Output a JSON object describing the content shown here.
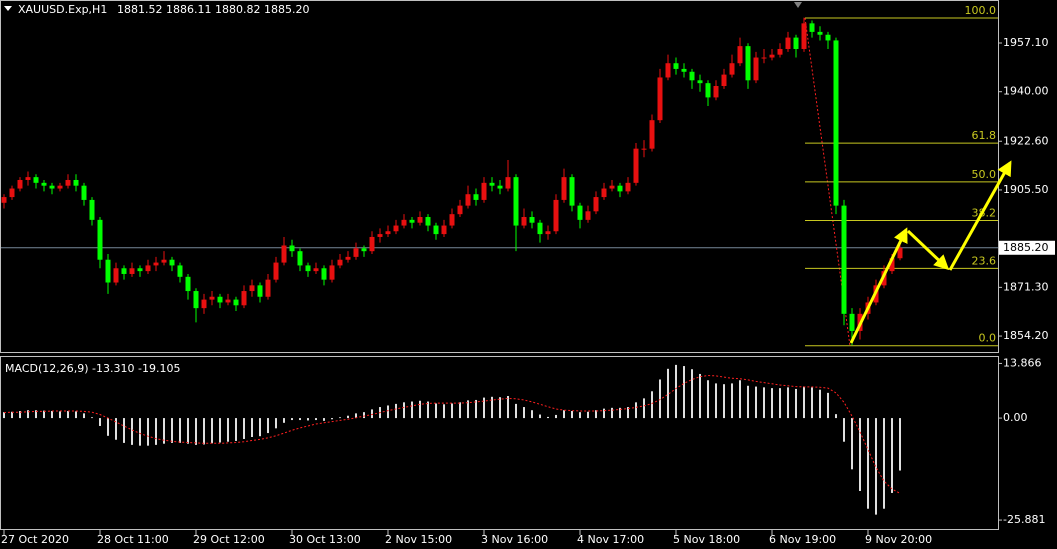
{
  "chart_data": [
    {
      "type": "candlestick",
      "title": "XAUUSD.Exp,H1",
      "quote": "1881.52 1886.11 1880.82 1885.20",
      "bull_color": "#e81010",
      "bear_color": "#00ff00",
      "xlim": [
        -0.5,
        124.25
      ],
      "ylim": [
        1848.6,
        1972.2
      ],
      "yticks": [
        {
          "value": 1957.1,
          "label": "1957.10"
        },
        {
          "value": 1940,
          "label": "1940.00"
        },
        {
          "value": 1922.6,
          "label": "1922.60"
        },
        {
          "value": 1905.5,
          "label": "1905.50"
        },
        {
          "value": 1871.3,
          "label": "1871.30"
        },
        {
          "value": 1854.2,
          "label": "1854.20"
        }
      ],
      "xticks": [
        {
          "value": 0,
          "label": "27 Oct 2020"
        },
        {
          "value": 12,
          "label": "28 Oct 11:00"
        },
        {
          "value": 24,
          "label": "29 Oct 12:00"
        },
        {
          "value": 36,
          "label": "30 Oct 13:00"
        },
        {
          "value": 48,
          "label": "2 Nov 15:00"
        },
        {
          "value": 60,
          "label": "3 Nov 16:00"
        },
        {
          "value": 72,
          "label": "4 Nov 17:00"
        },
        {
          "value": 84,
          "label": "5 Nov 18:00"
        },
        {
          "value": 96,
          "label": "6 Nov 19:00"
        },
        {
          "value": 108,
          "label": "9 Nov 20:00"
        }
      ],
      "bid": {
        "value": 1885.2,
        "label": "1885.20"
      },
      "fibo": {
        "high": 1965.9,
        "low": 1850.8,
        "color": "#c8c820",
        "levels": [
          {
            "value": 100,
            "label": "100.0"
          },
          {
            "value": 61.8,
            "label": "61.8"
          },
          {
            "value": 50,
            "label": "50.0"
          },
          {
            "value": 38.2,
            "label": "38.2"
          },
          {
            "value": 23.6,
            "label": "23.6"
          },
          {
            "value": 0,
            "label": "0.0"
          }
        ]
      },
      "candles": [
        [
          1901,
          1904,
          1899,
          1903
        ],
        [
          1903,
          1907,
          1902,
          1906
        ],
        [
          1906,
          1910,
          1905,
          1909
        ],
        [
          1909,
          1912,
          1907,
          1910
        ],
        [
          1910,
          1911,
          1906,
          1908
        ],
        [
          1908,
          1909,
          1905,
          1907
        ],
        [
          1907,
          1908,
          1904,
          1906
        ],
        [
          1906,
          1908,
          1905,
          1907
        ],
        [
          1907,
          1911,
          1906,
          1909
        ],
        [
          1909,
          1911,
          1905,
          1907
        ],
        [
          1907,
          1908,
          1900,
          1902
        ],
        [
          1902,
          1903,
          1893,
          1895
        ],
        [
          1895,
          1896,
          1878,
          1881
        ],
        [
          1881,
          1883,
          1869,
          1873
        ],
        [
          1873,
          1880,
          1872,
          1878
        ],
        [
          1878,
          1879,
          1874,
          1876
        ],
        [
          1876,
          1880,
          1875,
          1878
        ],
        [
          1878,
          1879,
          1875,
          1877
        ],
        [
          1877,
          1881,
          1876,
          1879
        ],
        [
          1879,
          1882,
          1877,
          1880
        ],
        [
          1880,
          1884,
          1879,
          1881
        ],
        [
          1881,
          1882,
          1877,
          1879
        ],
        [
          1879,
          1880,
          1873,
          1875
        ],
        [
          1875,
          1876,
          1867,
          1870
        ],
        [
          1870,
          1871,
          1859,
          1864
        ],
        [
          1864,
          1869,
          1862,
          1867
        ],
        [
          1867,
          1870,
          1865,
          1868
        ],
        [
          1868,
          1869,
          1864,
          1866
        ],
        [
          1866,
          1869,
          1865,
          1867
        ],
        [
          1867,
          1868,
          1863,
          1865
        ],
        [
          1865,
          1872,
          1864,
          1870
        ],
        [
          1870,
          1874,
          1868,
          1872
        ],
        [
          1872,
          1873,
          1866,
          1868
        ],
        [
          1868,
          1876,
          1867,
          1874
        ],
        [
          1874,
          1882,
          1873,
          1880
        ],
        [
          1880,
          1889,
          1879,
          1886
        ],
        [
          1886,
          1888,
          1882,
          1884
        ],
        [
          1884,
          1885,
          1877,
          1879
        ],
        [
          1879,
          1880,
          1875,
          1877
        ],
        [
          1877,
          1880,
          1876,
          1878
        ],
        [
          1878,
          1879,
          1872,
          1874
        ],
        [
          1874,
          1881,
          1873,
          1879
        ],
        [
          1879,
          1883,
          1878,
          1881
        ],
        [
          1881,
          1884,
          1880,
          1882
        ],
        [
          1882,
          1887,
          1881,
          1885
        ],
        [
          1885,
          1886,
          1882,
          1884
        ],
        [
          1884,
          1891,
          1883,
          1889
        ],
        [
          1889,
          1892,
          1887,
          1890
        ],
        [
          1890,
          1893,
          1889,
          1891
        ],
        [
          1891,
          1895,
          1890,
          1893
        ],
        [
          1893,
          1897,
          1892,
          1895
        ],
        [
          1895,
          1896,
          1892,
          1894
        ],
        [
          1894,
          1898,
          1893,
          1896
        ],
        [
          1896,
          1897,
          1891,
          1893
        ],
        [
          1893,
          1894,
          1888,
          1890
        ],
        [
          1890,
          1895,
          1889,
          1893
        ],
        [
          1893,
          1899,
          1892,
          1897
        ],
        [
          1897,
          1902,
          1896,
          1900
        ],
        [
          1900,
          1907,
          1899,
          1904
        ],
        [
          1904,
          1906,
          1900,
          1902
        ],
        [
          1902,
          1910,
          1901,
          1908
        ],
        [
          1908,
          1910,
          1905,
          1907
        ],
        [
          1907,
          1909,
          1904,
          1906
        ],
        [
          1906,
          1916,
          1905,
          1910
        ],
        [
          1910,
          1911,
          1884,
          1893
        ],
        [
          1893,
          1899,
          1892,
          1896
        ],
        [
          1896,
          1898,
          1892,
          1894
        ],
        [
          1894,
          1895,
          1887,
          1890
        ],
        [
          1890,
          1893,
          1888,
          1891
        ],
        [
          1891,
          1904,
          1890,
          1902
        ],
        [
          1902,
          1913,
          1901,
          1910
        ],
        [
          1910,
          1911,
          1898,
          1900
        ],
        [
          1900,
          1901,
          1892,
          1895
        ],
        [
          1895,
          1900,
          1894,
          1898
        ],
        [
          1898,
          1905,
          1897,
          1903
        ],
        [
          1903,
          1908,
          1902,
          1906
        ],
        [
          1906,
          1909,
          1905,
          1907
        ],
        [
          1907,
          1908,
          1903,
          1905
        ],
        [
          1905,
          1910,
          1904,
          1908
        ],
        [
          1908,
          1922,
          1907,
          1920
        ],
        [
          1920,
          1923,
          1917,
          1920
        ],
        [
          1920,
          1932,
          1919,
          1930
        ],
        [
          1930,
          1948,
          1929,
          1945
        ],
        [
          1945,
          1953,
          1944,
          1950
        ],
        [
          1950,
          1952,
          1946,
          1948
        ],
        [
          1948,
          1950,
          1945,
          1947
        ],
        [
          1947,
          1948,
          1941,
          1944
        ],
        [
          1944,
          1946,
          1940,
          1943
        ],
        [
          1943,
          1944,
          1935,
          1938
        ],
        [
          1938,
          1944,
          1937,
          1942
        ],
        [
          1942,
          1948,
          1941,
          1946
        ],
        [
          1946,
          1953,
          1945,
          1950
        ],
        [
          1950,
          1959,
          1949,
          1956
        ],
        [
          1956,
          1957,
          1941,
          1944
        ],
        [
          1944,
          1954,
          1943,
          1952
        ],
        [
          1952,
          1955,
          1950,
          1952
        ],
        [
          1952,
          1955,
          1951,
          1953
        ],
        [
          1953,
          1957,
          1952,
          1955
        ],
        [
          1955,
          1961,
          1954,
          1959
        ],
        [
          1959,
          1960,
          1952,
          1955
        ],
        [
          1955,
          1966,
          1954,
          1964
        ],
        [
          1964,
          1965,
          1959,
          1961
        ],
        [
          1961,
          1963,
          1958,
          1960
        ],
        [
          1960,
          1961,
          1955,
          1958
        ],
        [
          1958,
          1959,
          1897,
          1900
        ],
        [
          1900,
          1902,
          1858,
          1862
        ],
        [
          1862,
          1864,
          1851,
          1856
        ],
        [
          1856,
          1864,
          1853,
          1862
        ],
        [
          1862,
          1868,
          1860,
          1866
        ],
        [
          1866,
          1874,
          1865,
          1872
        ],
        [
          1872,
          1879,
          1871,
          1877
        ],
        [
          1877,
          1883,
          1876,
          1881.52
        ],
        [
          1881.52,
          1886.11,
          1880.82,
          1885.2
        ]
      ]
    },
    {
      "type": "macd",
      "title": "MACD(12,26,9) -13.310 -19.105",
      "ylim": [
        -28.4,
        15.5
      ],
      "yticks": [
        13.866,
        {
          "value": 0,
          "label": "0.00"
        },
        -25.881
      ],
      "histogram_color": "#e0e0e0",
      "signal_color": "#ff2020",
      "histogram": [
        1.5,
        1.6,
        1.8,
        2.0,
        2.0,
        1.9,
        1.8,
        1.7,
        1.8,
        1.7,
        1.2,
        0.2,
        -2.0,
        -4.5,
        -5.5,
        -6.3,
        -6.8,
        -7.0,
        -7.0,
        -6.8,
        -6.5,
        -6.3,
        -6.3,
        -6.5,
        -6.8,
        -6.7,
        -6.4,
        -6.2,
        -6.0,
        -5.8,
        -5.3,
        -4.8,
        -4.6,
        -3.8,
        -2.6,
        -1.2,
        -0.5,
        -0.5,
        -0.6,
        -0.5,
        -0.7,
        -0.3,
        0.2,
        0.6,
        1.2,
        1.5,
        2.2,
        2.8,
        3.2,
        3.6,
        4.0,
        4.2,
        4.4,
        4.2,
        3.7,
        3.5,
        3.7,
        4.0,
        4.5,
        4.6,
        5.2,
        5.4,
        5.3,
        5.6,
        3.6,
        2.8,
        2.0,
        0.9,
        0.3,
        0.8,
        2.0,
        1.8,
        1.5,
        1.6,
        2.0,
        2.4,
        2.6,
        2.6,
        2.8,
        4.0,
        5.0,
        6.8,
        9.8,
        12.5,
        13.5,
        13.2,
        12.4,
        11.2,
        9.6,
        8.8,
        8.6,
        8.8,
        9.6,
        8.2,
        8.0,
        7.8,
        7.6,
        7.6,
        7.8,
        7.4,
        8.0,
        7.8,
        7.2,
        6.4,
        1.0,
        -6.0,
        -13.0,
        -18.5,
        -23.0,
        -24.5,
        -23.0,
        -19.0,
        -13.31
      ],
      "signal": [
        1.4,
        1.5,
        1.5,
        1.6,
        1.7,
        1.7,
        1.8,
        1.8,
        1.8,
        1.8,
        1.7,
        1.5,
        0.9,
        0.0,
        -1.0,
        -2.0,
        -3.0,
        -3.9,
        -4.6,
        -5.2,
        -5.6,
        -5.9,
        -6.1,
        -6.2,
        -6.3,
        -6.4,
        -6.4,
        -6.4,
        -6.3,
        -6.2,
        -6.0,
        -5.7,
        -5.4,
        -5.0,
        -4.5,
        -3.8,
        -3.1,
        -2.5,
        -2.0,
        -1.5,
        -1.2,
        -0.9,
        -0.6,
        -0.3,
        0.1,
        0.5,
        0.9,
        1.4,
        1.9,
        2.3,
        2.7,
        3.1,
        3.5,
        3.7,
        3.8,
        3.8,
        3.8,
        3.8,
        3.9,
        4.1,
        4.3,
        4.6,
        4.8,
        5.0,
        4.9,
        4.6,
        4.1,
        3.5,
        2.9,
        2.3,
        2.0,
        1.9,
        1.8,
        1.8,
        1.8,
        1.9,
        2.0,
        2.2,
        2.4,
        2.7,
        3.1,
        3.7,
        4.7,
        6.0,
        7.5,
        8.8,
        9.8,
        10.5,
        10.8,
        10.7,
        10.4,
        10.1,
        10.0,
        9.7,
        9.3,
        9.0,
        8.7,
        8.4,
        8.2,
        8.0,
        7.9,
        7.9,
        7.8,
        7.6,
        6.4,
        4.0,
        0.5,
        -3.5,
        -8.0,
        -12.5,
        -16.0,
        -18.0,
        -19.105
      ]
    }
  ]
}
